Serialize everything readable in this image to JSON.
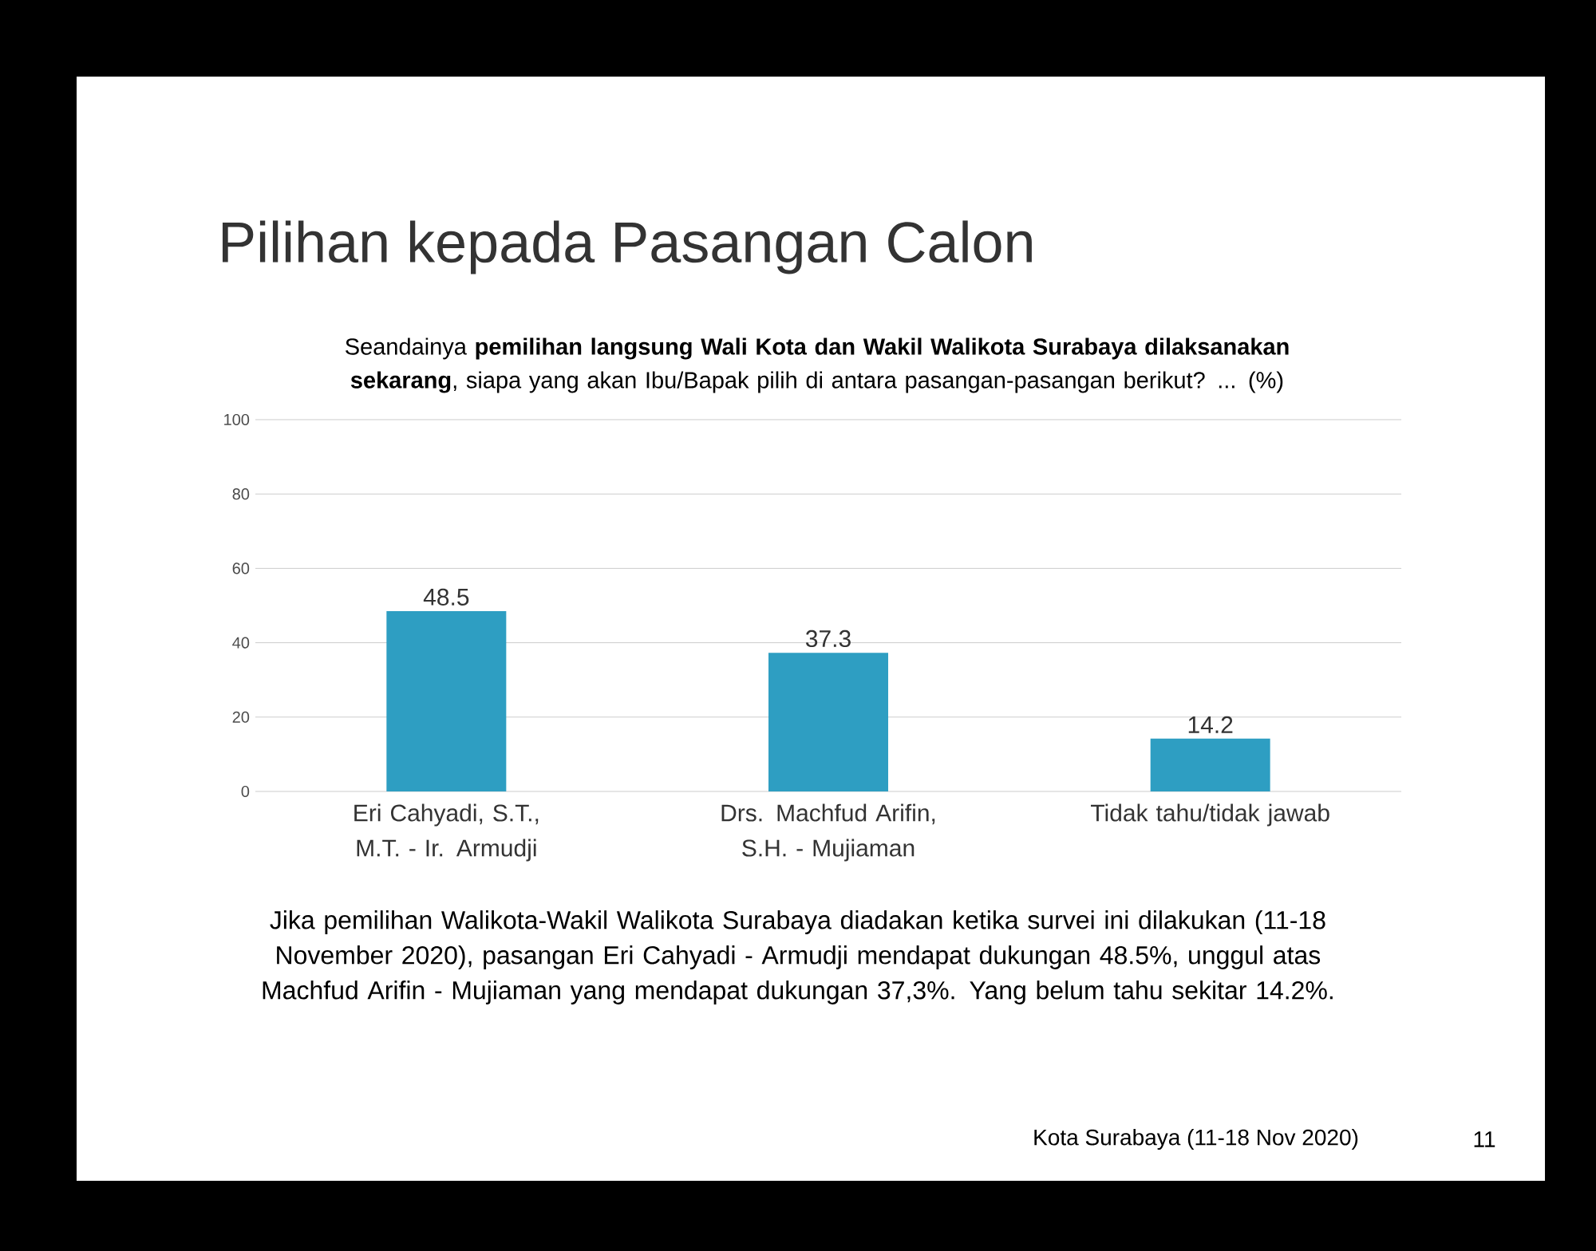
{
  "chart_data": {
    "type": "bar",
    "title": "Pilihan kepada Pasangan Calon",
    "subtitle": "Seandainya **pemilihan langsung Wali Kota dan Wakil Walikota Surabaya dilaksanakan sekarang**, siapa yang akan Ibu/Bapak pilih di antara pasangan-pasangan  berikut? ... (%)",
    "categories": [
      "Eri Cahyadi, S.T., M.T. - Ir. Armudji",
      "Drs. Machfud Arifin, S.H. - Mujiaman",
      "Tidak tahu/tidak jawab"
    ],
    "values": [
      48.5,
      37.3,
      14.2
    ],
    "value_labels": [
      "48.5",
      "37.3",
      "14.2"
    ],
    "color": "#2e9ec2",
    "ylim": [
      0,
      100
    ],
    "yticks": [
      0,
      20,
      40,
      60,
      80,
      100
    ],
    "grid": "y",
    "annotations": [
      "Jika pemilihan Walikota-Wakil Walikota Surabaya diadakan ketika survei ini dilakukan (11-18 November 2020), pasangan Eri Cahyadi - Armudji mendapat dukungan 48.5%, unggul atas Machfud Arifin - Mujiaman yang mendapat dukungan 37,3%. Yang belum tahu sekitar 14.2%.",
      "Kota Surabaya (11-18 Nov 2020)",
      "11"
    ]
  }
}
